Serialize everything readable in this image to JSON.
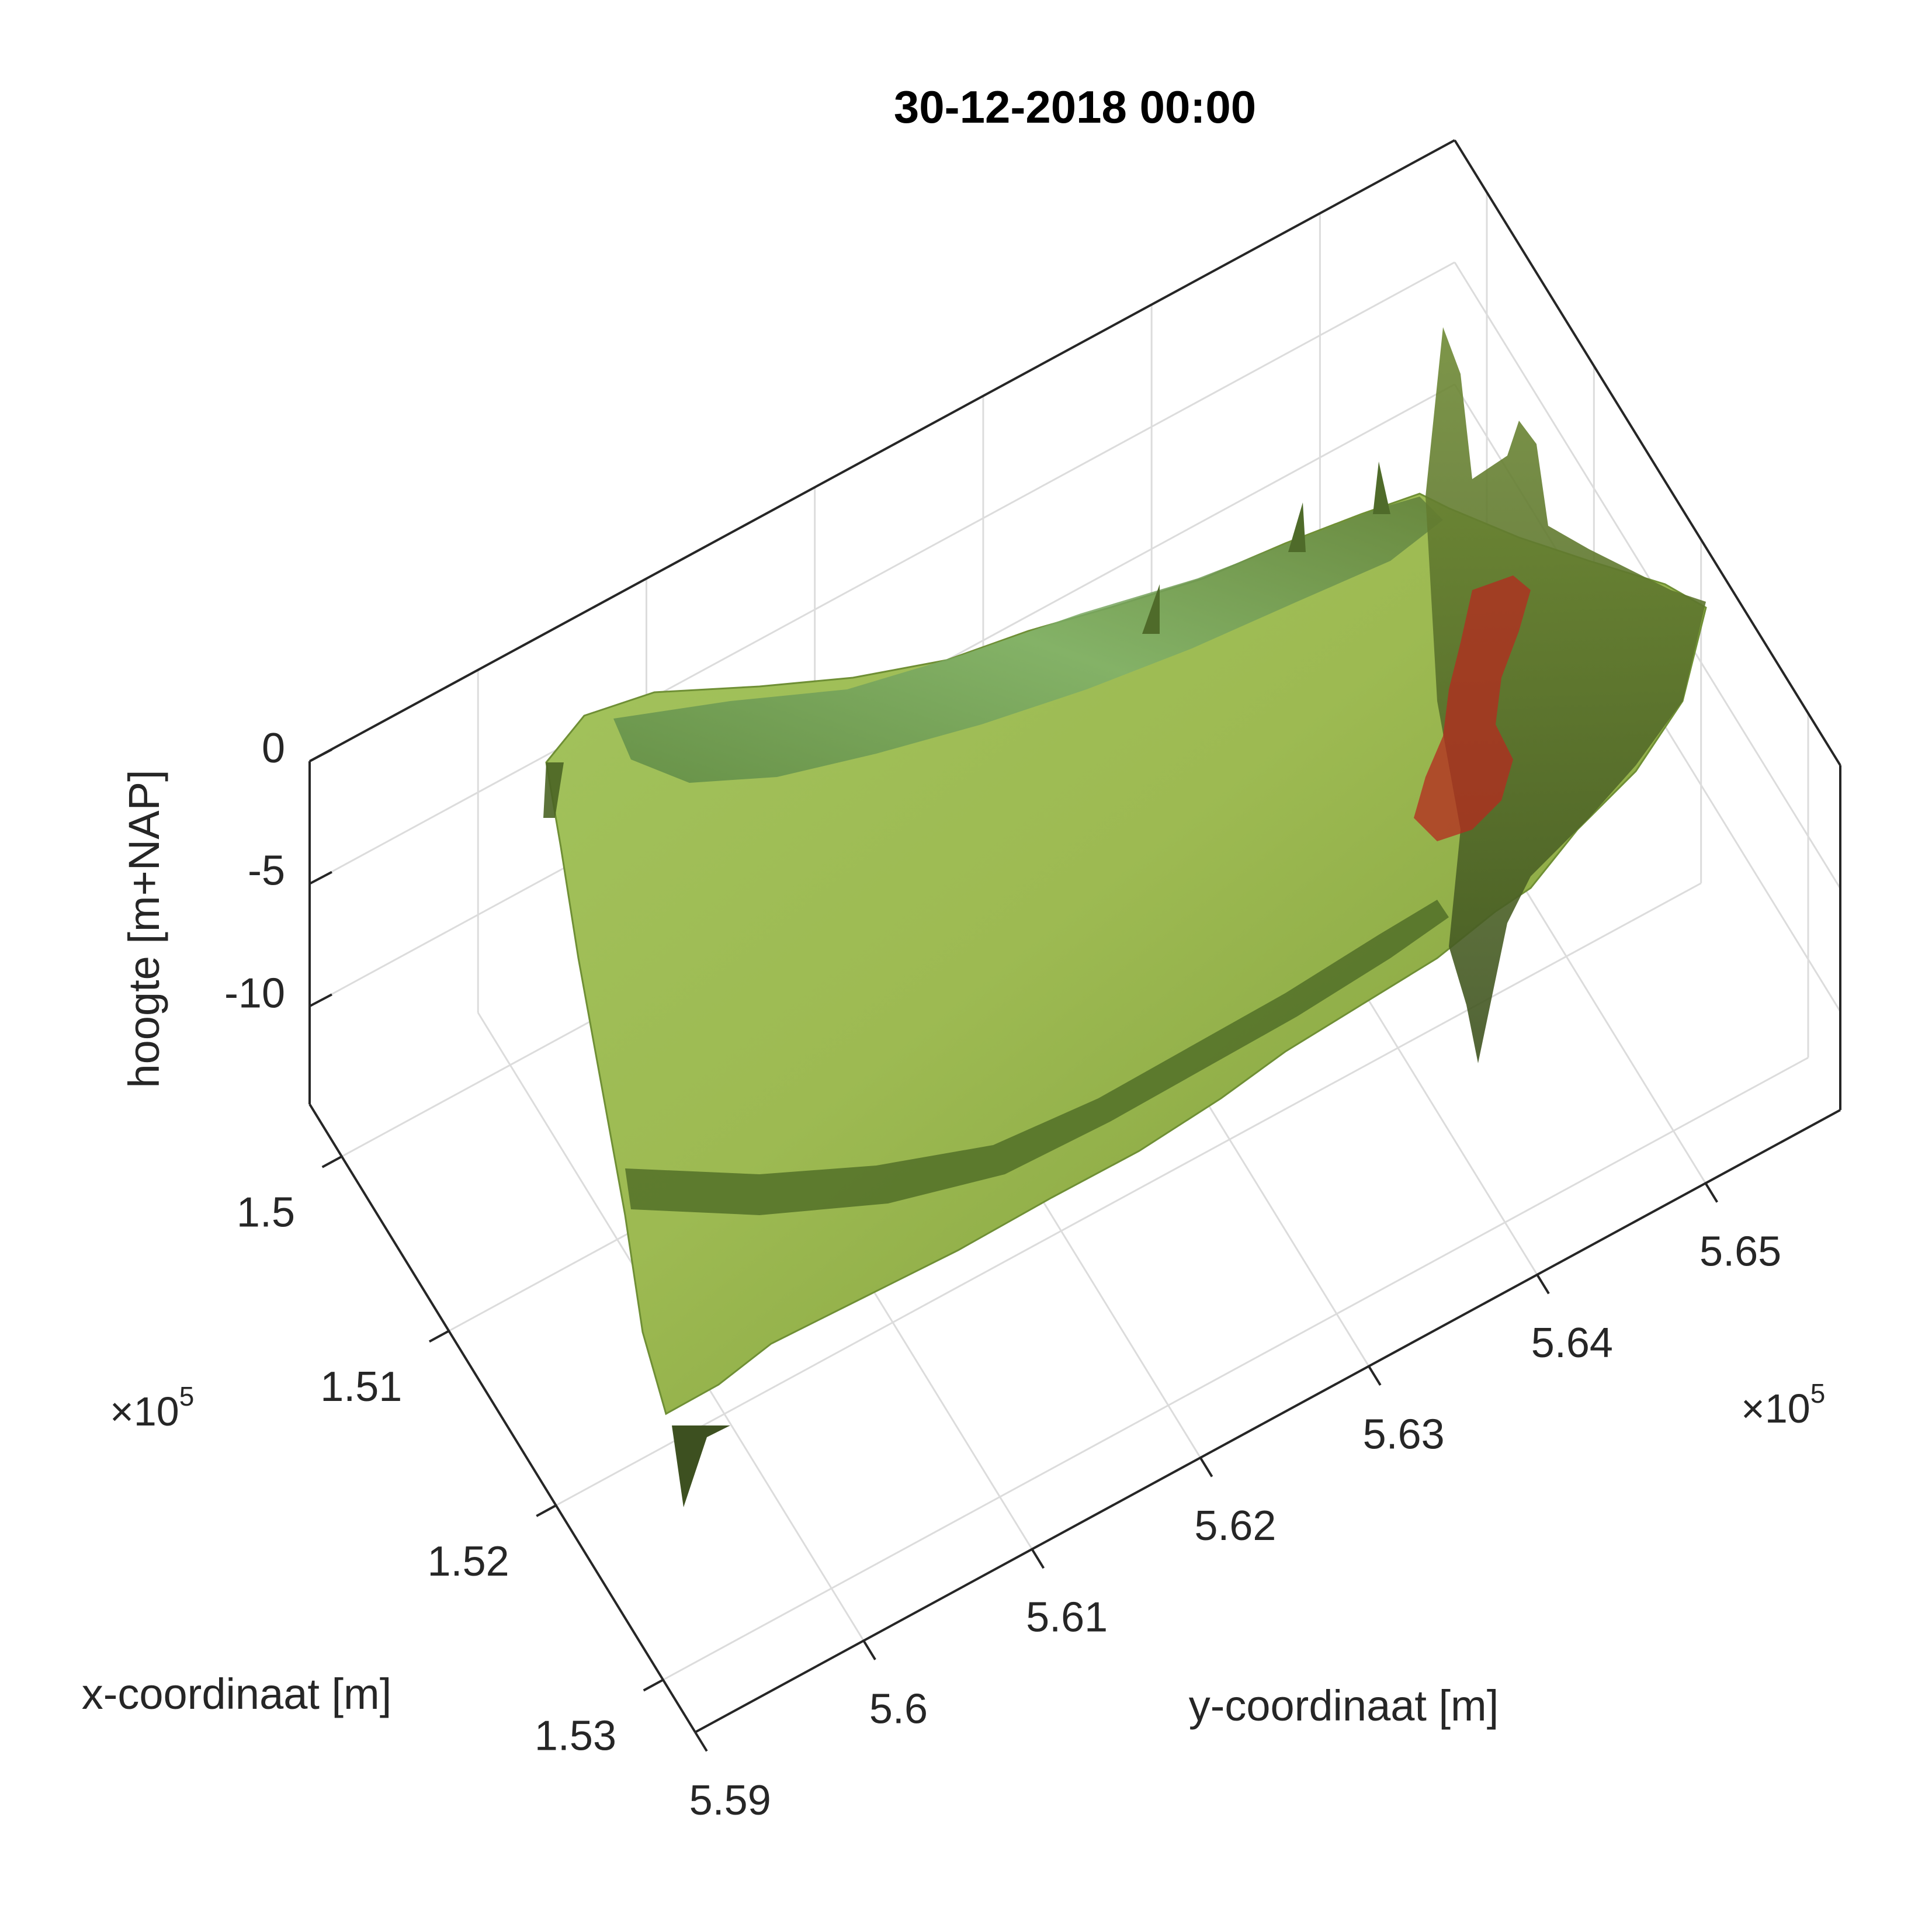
{
  "chart_data": {
    "type": "surface3d",
    "title": "30-12-2018 00:00",
    "xlabel": "x-coordinaat [m]",
    "ylabel": "y-coordinaat [m]",
    "zlabel": "hoogte [m+NAP]",
    "x_ticks": [
      "1.5",
      "1.51",
      "1.52",
      "1.53"
    ],
    "y_ticks": [
      "5.59",
      "5.6",
      "5.61",
      "5.62",
      "5.63",
      "5.64",
      "5.65"
    ],
    "z_ticks": [
      "0",
      "-5",
      "-10"
    ],
    "x_exponent": "×10",
    "x_exponent_power": "5",
    "y_exponent": "×10",
    "y_exponent_power": "5",
    "xlim": [
      149700,
      153300
    ],
    "ylim": [
      559000,
      565800
    ],
    "zlim": [
      -14,
      0
    ],
    "grid": true,
    "surface_colors": [
      "#9fba4f",
      "#7fa53a",
      "#4d6b22",
      "#a7d084"
    ],
    "highlight_color": "#b52a1f"
  }
}
